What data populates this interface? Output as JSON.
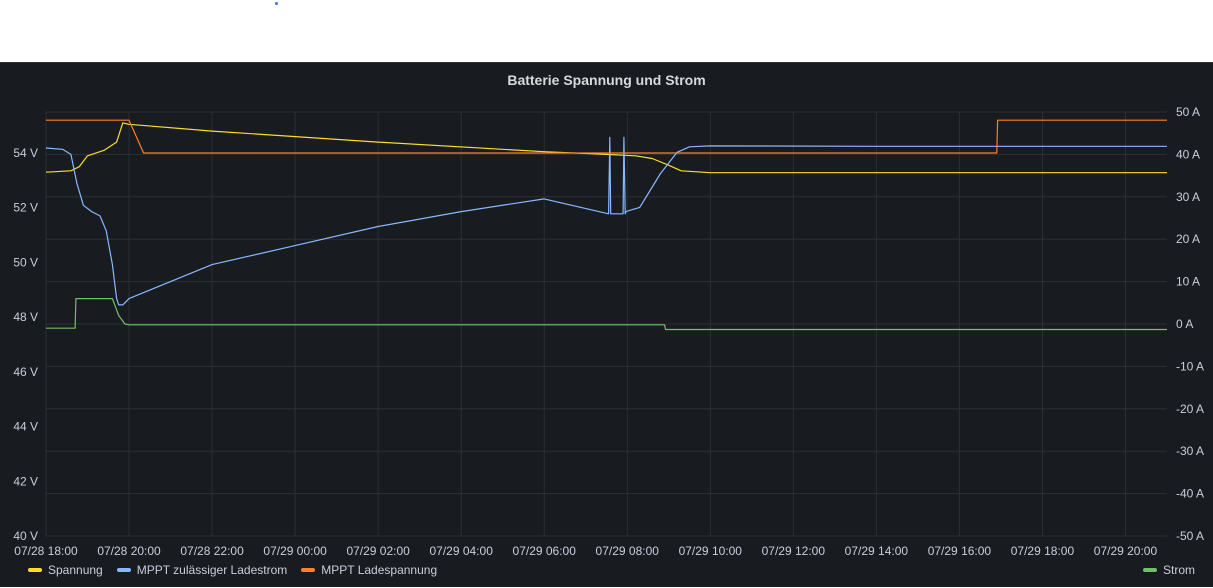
{
  "chart_data": {
    "type": "line",
    "title": "Batterie Spannung und Strom",
    "x_ticks": [
      "07/28 18:00",
      "07/28 20:00",
      "07/28 22:00",
      "07/29 00:00",
      "07/29 02:00",
      "07/29 04:00",
      "07/29 06:00",
      "07/29 08:00",
      "07/29 10:00",
      "07/29 12:00",
      "07/29 14:00",
      "07/29 16:00",
      "07/29 18:00",
      "07/29 20:00"
    ],
    "x_range_hours": [
      0,
      27.0
    ],
    "y_left": {
      "unit": "V",
      "ylim": [
        40,
        55.5
      ],
      "ticks": [
        "40 V",
        "42 V",
        "44 V",
        "46 V",
        "48 V",
        "50 V",
        "52 V",
        "54 V"
      ]
    },
    "y_right": {
      "unit": "A",
      "ylim": [
        -50,
        50
      ],
      "ticks": [
        "-50 A",
        "-40 A",
        "-30 A",
        "-20 A",
        "-10 A",
        "0 A",
        "10 A",
        "20 A",
        "30 A",
        "40 A",
        "50 A"
      ]
    },
    "grid": true,
    "series": [
      {
        "name": "Spannung",
        "color": "#fade2a",
        "axis": "left",
        "x": [
          0,
          0.6,
          0.8,
          1.0,
          1.4,
          1.7,
          1.85,
          2.0,
          4.0,
          8.0,
          12.0,
          13.5,
          14.2,
          14.6,
          15.0,
          15.3,
          16.0,
          20.0,
          24.0,
          27.0
        ],
        "y": [
          53.3,
          53.35,
          53.5,
          53.9,
          54.1,
          54.4,
          55.1,
          55.05,
          54.8,
          54.4,
          54.05,
          53.95,
          53.9,
          53.8,
          53.55,
          53.35,
          53.28,
          53.28,
          53.28,
          53.28
        ]
      },
      {
        "name": "MPPT zulässiger Ladestrom",
        "color": "#8ab8ff",
        "axis": "right",
        "x": [
          0,
          0.4,
          0.6,
          0.75,
          0.9,
          1.1,
          1.3,
          1.45,
          1.6,
          1.7,
          1.75,
          1.85,
          2.0,
          4.0,
          6.0,
          8.0,
          10.0,
          12.0,
          13.55,
          13.58,
          13.6,
          13.63,
          13.9,
          13.92,
          13.95,
          13.97,
          14.3,
          14.8,
          15.2,
          15.5,
          16.0,
          20.0,
          24.0,
          27.0
        ],
        "y": [
          41.5,
          41.2,
          40.0,
          33.0,
          28.0,
          26.5,
          25.5,
          22.0,
          14.0,
          6.0,
          4.5,
          4.5,
          6.0,
          14.0,
          18.5,
          23.0,
          26.5,
          29.5,
          26.0,
          44.0,
          26.0,
          26.0,
          26.0,
          44.0,
          26.0,
          26.5,
          27.5,
          35.5,
          40.5,
          41.8,
          42.0,
          41.9,
          41.9,
          41.9
        ]
      },
      {
        "name": "MPPT Ladespannung",
        "color": "#ff7f2a",
        "axis": "left",
        "x": [
          0,
          2.0,
          2.35,
          16.0,
          22.9,
          22.92,
          27.0
        ],
        "y": [
          55.2,
          55.2,
          54.0,
          54.0,
          54.0,
          55.2,
          55.2
        ]
      },
      {
        "name": "Strom",
        "color": "#73bf69",
        "axis": "right",
        "x": [
          0,
          0.7,
          0.72,
          1.6,
          1.75,
          1.9,
          2.0,
          14.9,
          14.92,
          27.0
        ],
        "y": [
          -1.0,
          -1.0,
          6.0,
          6.0,
          2.0,
          0.0,
          -0.2,
          -0.2,
          -1.3,
          -1.3
        ]
      }
    ],
    "legend_position": "bottom"
  }
}
